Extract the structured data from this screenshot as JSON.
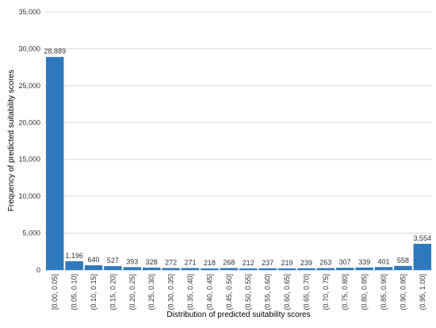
{
  "chart_data": {
    "type": "bar",
    "x_label": "Distribution of predicted suitability scores",
    "y_label": "Frequency of predicted suitability scores",
    "categories": [
      "[0.00, 0.05]",
      "(0.05, 0.10]",
      "(0.10, 0.15]",
      "(0.15, 0.20]",
      "(0.20, 0.25]",
      "(0.25, 0.30]",
      "(0.30, 0.35]",
      "(0.35, 0.40]",
      "(0.40, 0.45]",
      "(0.45, 0.50]",
      "(0.50, 0.55]",
      "(0.55, 0.60]",
      "(0.60, 0.65]",
      "(0.65, 0.70]",
      "(0.70, 0.75]",
      "(0.75, 0.80]",
      "(0.80, 0.85]",
      "(0.85, 0.90]",
      "(0.90, 0.95]",
      "(0.95, 1.00]"
    ],
    "values": [
      28889,
      1196,
      640,
      527,
      393,
      328,
      272,
      271,
      218,
      268,
      212,
      237,
      219,
      239,
      263,
      307,
      339,
      401,
      558,
      3554
    ],
    "value_labels": [
      "28,889",
      "1,196",
      "640",
      "527",
      "393",
      "328",
      "272",
      "271",
      "218",
      "268",
      "212",
      "237",
      "219",
      "239",
      "263",
      "307",
      "339",
      "401",
      "558",
      "3,554"
    ],
    "color": "#2e79bd",
    "ylim": [
      0,
      35000
    ],
    "yticks": [
      0,
      {
        "value": 5000,
        "label": "5,000"
      },
      {
        "value": 10000,
        "label": "10,000"
      },
      {
        "value": 15000,
        "label": "15,000"
      },
      {
        "value": 20000,
        "label": "20,000"
      },
      {
        "value": 25000,
        "label": "25,000"
      },
      {
        "value": 30000,
        "label": "30,000"
      },
      {
        "value": 35000,
        "label": "35,000"
      }
    ],
    "grid": true
  }
}
